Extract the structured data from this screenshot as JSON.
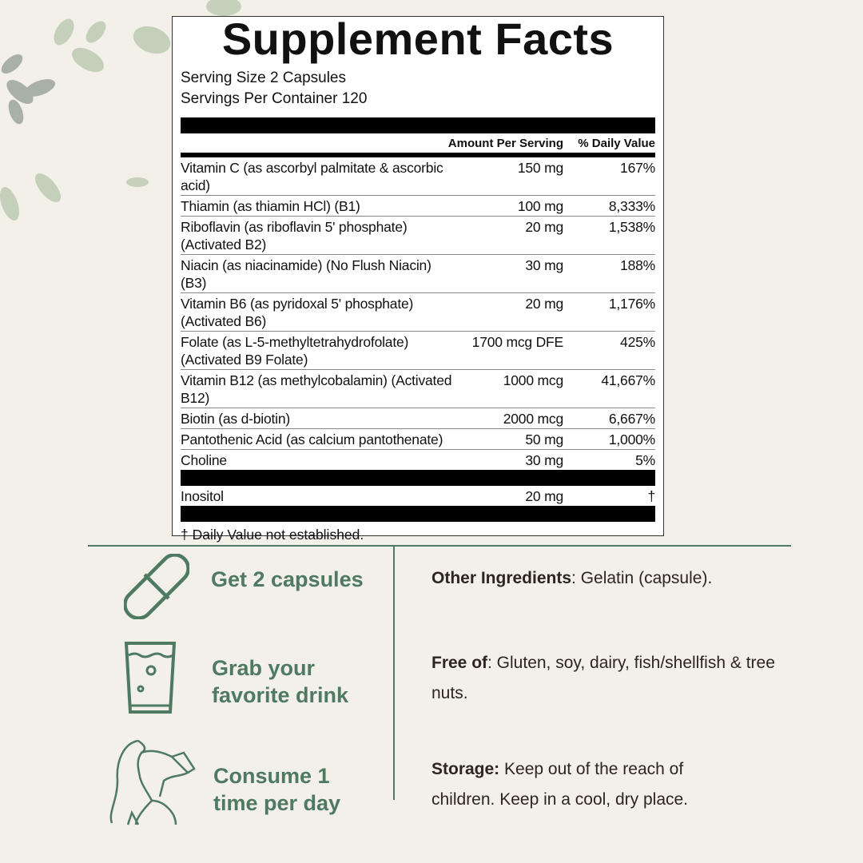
{
  "label": {
    "title": "Supplement Facts",
    "serving_size": "Serving Size 2 Capsules",
    "servings_per_container": "Servings Per Container 120",
    "header_amount": "Amount Per Serving",
    "header_dv": "% Daily Value",
    "rows": [
      {
        "name": "Vitamin C (as ascorbyl palmitate & ascorbic acid)",
        "amount": "150 mg",
        "dv": "167%"
      },
      {
        "name": "Thiamin (as thiamin HCl) (B1)",
        "amount": "100 mg",
        "dv": "8,333%"
      },
      {
        "name": "Riboflavin (as riboflavin 5' phosphate) (Activated B2)",
        "amount": "20 mg",
        "dv": "1,538%"
      },
      {
        "name": "Niacin (as niacinamide) (No Flush Niacin) (B3)",
        "amount": "30 mg",
        "dv": "188%"
      },
      {
        "name": "Vitamin B6 (as pyridoxal 5' phosphate) (Activated B6)",
        "amount": "20 mg",
        "dv": "1,176%"
      },
      {
        "name": "Folate (as L-5-methyltetrahydrofolate) (Activated B9 Folate)",
        "amount": "1700 mcg DFE",
        "dv": "425%"
      },
      {
        "name": "Vitamin B12 (as methylcobalamin) (Activated B12)",
        "amount": "1000 mcg",
        "dv": "41,667%"
      },
      {
        "name": "Biotin (as d-biotin)",
        "amount": "2000 mcg",
        "dv": "6,667%"
      },
      {
        "name": "Pantothenic Acid (as calcium pantothenate)",
        "amount": "50 mg",
        "dv": "1,000%"
      },
      {
        "name": "Choline",
        "amount": "30 mg",
        "dv": "5%"
      }
    ],
    "extra_row": {
      "name": "Inositol",
      "amount": "20 mg",
      "dv": "†"
    },
    "footnote": "† Daily Value not established."
  },
  "steps": [
    {
      "icon": "capsule-icon",
      "line1": "Get 2 capsules",
      "line2": ""
    },
    {
      "icon": "glass-icon",
      "line1": "Grab your",
      "line2": "favorite drink"
    },
    {
      "icon": "woman-drinking-icon",
      "line1": "Consume 1",
      "line2": "time per day"
    }
  ],
  "info": {
    "other_label": "Other Ingredients",
    "other_text": ": Gelatin (capsule).",
    "free_label": "Free of",
    "free_text": ": Gluten, soy, dairy, fish/shellfish & tree nuts.",
    "storage_label": "Storage:",
    "storage_text": " Keep out of the reach of children. Keep in a cool, dry place."
  },
  "colors": {
    "accent": "#4f7a62",
    "background": "#f3efe9"
  }
}
